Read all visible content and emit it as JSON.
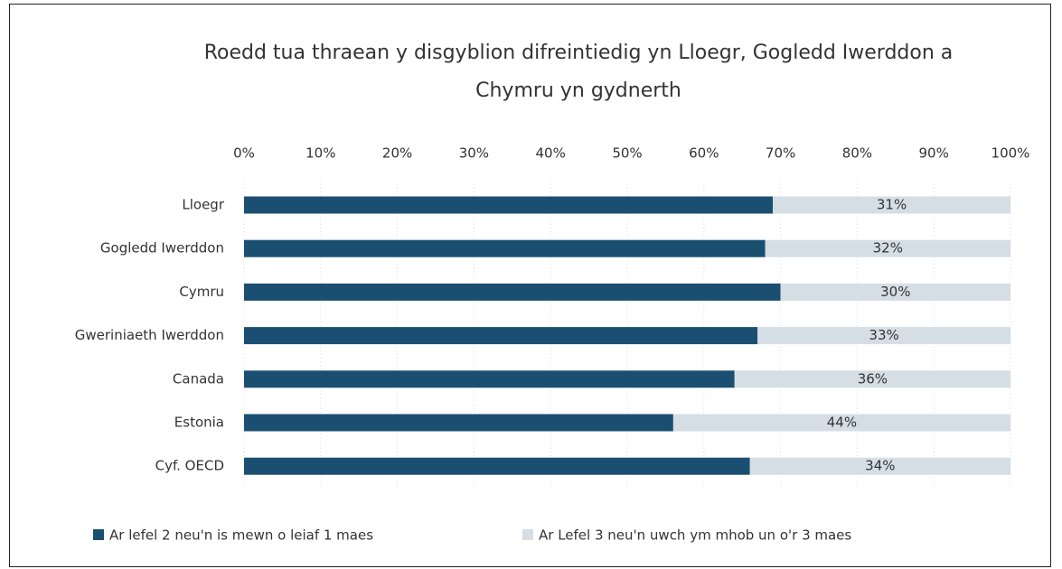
{
  "chart_data": {
    "type": "stacked-bar-horizontal",
    "title": "Roedd tua thraean y disgyblion difreintiedig yn Lloegr, Gogledd Iwerddon  a Chymru yn gydnerth",
    "categories": [
      "Lloegr",
      "Gogledd Iwerddon",
      "Cymru",
      "Gweriniaeth Iwerddon",
      "Canada",
      "Estonia",
      "Cyf. OECD"
    ],
    "series": [
      {
        "name": "Ar lefel 2 neu'n is mewn o leiaf 1 maes",
        "color": "#1b4f72",
        "values": [
          69,
          68,
          70,
          67,
          64,
          56,
          66
        ]
      },
      {
        "name": "Ar Lefel 3 neu'n uwch ym mhob un o'r 3 maes",
        "color": "#d5dee5",
        "values": [
          31,
          32,
          30,
          33,
          36,
          44,
          34
        ],
        "value_labels": [
          "31%",
          "32%",
          "30%",
          "33%",
          "36%",
          "44%",
          "34%"
        ]
      }
    ],
    "xlim": [
      0,
      100
    ],
    "xticks": [
      {
        "value": 0,
        "label": "0%"
      },
      {
        "value": 10,
        "label": "10%"
      },
      {
        "value": 20,
        "label": "20%"
      },
      {
        "value": 30,
        "label": "30%"
      },
      {
        "value": 40,
        "label": "40%"
      },
      {
        "value": 50,
        "label": "50%"
      },
      {
        "value": 60,
        "label": "60%"
      },
      {
        "value": 70,
        "label": "70%"
      },
      {
        "value": 80,
        "label": "80%"
      },
      {
        "value": 90,
        "label": "90%"
      },
      {
        "value": 100,
        "label": "100%"
      }
    ],
    "grid": true,
    "legend": "bottom"
  }
}
